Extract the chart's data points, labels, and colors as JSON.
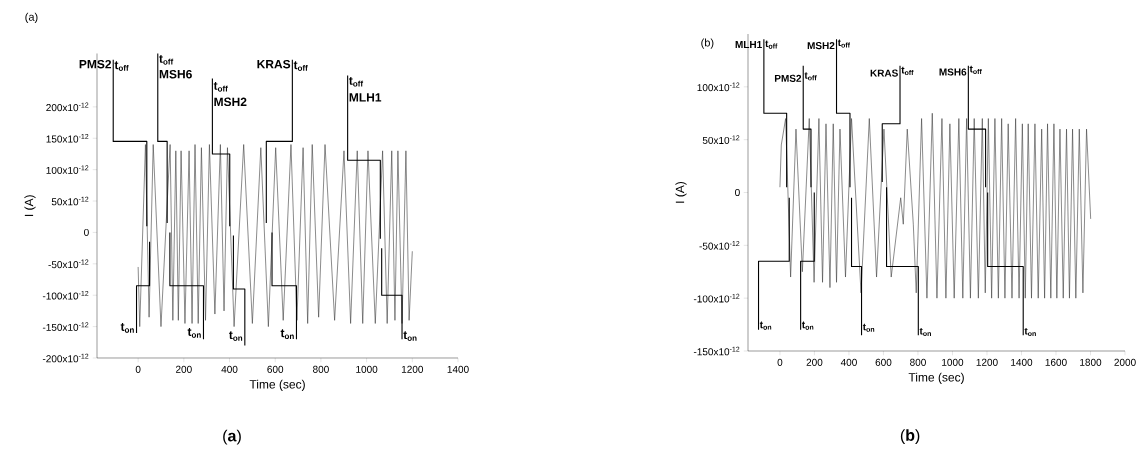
{
  "chart_data": [
    {
      "type": "line",
      "title": "(a)",
      "xlabel": "Time (sec)",
      "ylabel": "I (A)",
      "xlim": [
        -180,
        1400
      ],
      "ylim": [
        -2e-10,
        2.85e-10
      ],
      "xticks": [
        0,
        200,
        400,
        600,
        800,
        1000,
        1200,
        1400
      ],
      "yticks": [
        {
          "value": -2e-10,
          "label": "-200x10$^{-12}$"
        },
        {
          "value": -1.5e-10,
          "label": "-150x10$^{-12}$"
        },
        {
          "value": -1e-10,
          "label": "-100x10$^{-12}$"
        },
        {
          "value": -5e-11,
          "label": "-50x10$^{-12}$"
        },
        0,
        {
          "value": 5e-11,
          "label": "50x10$^{-12}$"
        },
        {
          "value": 1e-10,
          "label": "100x10$^{-12}$"
        },
        {
          "value": 1.5e-10,
          "label": "150x10$^{-12}$"
        },
        {
          "value": 2e-10,
          "label": "200x10$^{-12}$"
        }
      ],
      "series": [
        {
          "color": "#3c3c3c",
          "x": [
            0,
            7,
            32,
            48,
            66,
            100,
            140,
            152,
            165,
            176,
            188,
            205,
            223,
            236,
            249,
            263,
            277,
            295,
            312,
            336,
            360,
            376,
            391,
            420,
            462,
            500,
            537,
            570,
            602,
            635,
            669,
            695,
            722,
            742,
            762,
            790,
            818,
            860,
            901,
            930,
            959,
            983,
            1006,
            1038,
            1070,
            1090,
            1110,
            1124,
            1137,
            1155,
            1172,
            1186,
            1200
          ],
          "values": [
            -5.5e-11,
            -1.5e-10,
            1.4e-10,
            -1.35e-10,
            1.4e-10,
            -1.5e-10,
            1.4e-10,
            -1.4e-10,
            1.3e-10,
            -1.4e-10,
            1.3e-10,
            -1.45e-10,
            1.3e-10,
            -1.45e-10,
            1.4e-10,
            -1.45e-10,
            1.35e-10,
            -1.4e-10,
            1.4e-10,
            -1.3e-10,
            1.4e-10,
            -1.25e-10,
            1.35e-10,
            -1.5e-10,
            1.4e-10,
            -1.45e-10,
            1.35e-10,
            -1.5e-10,
            1.35e-10,
            -1.4e-10,
            1.4e-10,
            -1.4e-10,
            1.35e-10,
            -1.45e-10,
            1.4e-10,
            -1.35e-10,
            1.4e-10,
            -1.4e-10,
            1.3e-10,
            -1.45e-10,
            1.3e-10,
            -1.45e-10,
            1.3e-10,
            -1.45e-10,
            1.3e-10,
            -1.45e-10,
            1.3e-10,
            -1.4e-10,
            1.3e-10,
            -1.45e-10,
            1.3e-10,
            -1.4e-10,
            -3e-11
          ]
        },
        {
          "color": "#000000",
          "x": [
            -109,
            -109,
            38,
            38
          ],
          "values": [
            2.75e-10,
            1.45e-10,
            1.45e-10,
            1e-11
          ]
        },
        {
          "color": "#000000",
          "x": [
            -7,
            -7,
            50,
            50
          ],
          "values": [
            -1.6e-10,
            -8.5e-11,
            -8.5e-11,
            -1.5e-11
          ]
        },
        {
          "color": "#000000",
          "x": [
            86,
            86,
            127,
            127
          ],
          "values": [
            2.85e-10,
            1.45e-10,
            1.45e-10,
            1.5e-11
          ]
        },
        {
          "color": "#000000",
          "x": [
            286,
            286,
            139,
            139
          ],
          "values": [
            -1.7e-10,
            -8.5e-11,
            -8.5e-11,
            0
          ]
        },
        {
          "color": "#000000",
          "x": [
            325,
            325,
            401,
            401
          ],
          "values": [
            2.45e-10,
            1.25e-10,
            1.25e-10,
            1e-11
          ]
        },
        {
          "color": "#000000",
          "x": [
            467,
            467,
            417,
            417
          ],
          "values": [
            -1.8e-10,
            -9e-11,
            -9e-11,
            -5e-12
          ]
        },
        {
          "color": "#000000",
          "x": [
            675,
            675,
            561,
            561
          ],
          "values": [
            2.75e-10,
            1.45e-10,
            1.45e-10,
            1.5e-11
          ]
        },
        {
          "color": "#000000",
          "x": [
            693,
            693,
            586,
            586
          ],
          "values": [
            -1.7e-10,
            -8.5e-11,
            -8.5e-11,
            0
          ]
        },
        {
          "color": "#000000",
          "x": [
            917,
            917,
            1060,
            1060
          ],
          "values": [
            2.5e-10,
            1.15e-10,
            1.15e-10,
            -1e-11
          ]
        },
        {
          "color": "#000000",
          "x": [
            1155,
            1155,
            1066,
            1066
          ],
          "values": [
            -1.7e-10,
            -1e-10,
            -1e-10,
            -2.5e-11
          ]
        }
      ],
      "annotations": [
        {
          "text": "PMS2",
          "x": -109,
          "y": 2.68e-10
        },
        {
          "text": "t$_{off}$",
          "x": -109,
          "y": 2.65e-10
        },
        {
          "text": "t$_{off}$",
          "x": 86,
          "y": 2.75e-10
        },
        {
          "text": "MSH6",
          "x": 86,
          "y": 2.52e-10
        },
        {
          "text": "t$_{off}$",
          "x": 325,
          "y": 2.32e-10
        },
        {
          "text": "MSH2",
          "x": 325,
          "y": 2.08e-10
        },
        {
          "text": "KRAS",
          "x": 675,
          "y": 2.68e-10
        },
        {
          "text": "t$_{off}$",
          "x": 675,
          "y": 2.65e-10
        },
        {
          "text": "t$_{off}$",
          "x": 917,
          "y": 2.4e-10
        },
        {
          "text": "MLH1",
          "x": 917,
          "y": 2.15e-10
        },
        {
          "text": "t$_{on}$",
          "x": -7,
          "y": -1.52e-10
        },
        {
          "text": "t$_{on}$",
          "x": 286,
          "y": -1.6e-10
        },
        {
          "text": "t$_{on}$",
          "x": 467,
          "y": -1.65e-10
        },
        {
          "text": "t$_{on}$",
          "x": 693,
          "y": -1.62e-10
        },
        {
          "text": "t$_{on}$",
          "x": 1155,
          "y": -1.65e-10
        },
        "(**a**)"
      ]
    },
    {
      "type": "line",
      "title": "(b)",
      "xlabel": "Time (sec)",
      "ylabel": "I (A)",
      "xlim": [
        -185,
        2000
      ],
      "ylim": [
        -1.5e-10,
        1.5e-10
      ],
      "xticks": [
        0,
        200,
        400,
        600,
        800,
        1000,
        1200,
        1400,
        1600,
        1800,
        2000
      ],
      "yticks": [
        {
          "value": -1.5e-10,
          "label": "-150x10$^{-12}$"
        },
        {
          "value": -1e-10,
          "label": "-100x10$^{-12}$"
        },
        {
          "value": -5e-11,
          "label": "-50x10$^{-12}$"
        },
        0,
        {
          "value": 5e-11,
          "label": "50x10$^{-12}$"
        },
        {
          "value": 1e-10,
          "label": "100x10$^{-12}$"
        }
      ],
      "series": [
        {
          "color": "#3c3c3c",
          "x": [
            0,
            8,
            33,
            62,
            93,
            130,
            170,
            198,
            226,
            247,
            267,
            290,
            309,
            328,
            348,
            380,
            415,
            470,
            518,
            560,
            603,
            645,
            700,
            715,
            738,
            773,
            790,
            821,
            852,
            883,
            910,
            939,
            962,
            985,
            1010,
            1037,
            1060,
            1082,
            1104,
            1126,
            1150,
            1173,
            1190,
            1208,
            1227,
            1246,
            1266,
            1285,
            1304,
            1323,
            1345,
            1366,
            1386,
            1405,
            1422,
            1439,
            1458,
            1478,
            1497,
            1517,
            1534,
            1551,
            1570,
            1588,
            1605,
            1623,
            1642,
            1661,
            1678,
            1696,
            1715,
            1735,
            1756,
            1777,
            1801
          ],
          "values": [
            5e-12,
            4.5e-11,
            7e-11,
            -8e-11,
            6e-11,
            -7.5e-11,
            7e-11,
            -8.5e-11,
            7e-11,
            -8.5e-11,
            6.5e-11,
            -9e-11,
            6.5e-11,
            -8.5e-11,
            6e-11,
            -8e-11,
            7e-11,
            -9.5e-11,
            7e-11,
            -8e-11,
            6e-11,
            -8e-11,
            -5e-12,
            -3e-11,
            6e-11,
            -3e-11,
            -9.5e-11,
            7e-11,
            -1e-10,
            7.5e-11,
            -1e-10,
            7e-11,
            -1e-10,
            6.5e-11,
            -1e-10,
            7e-11,
            -1e-10,
            7e-11,
            -1e-10,
            7e-11,
            -1e-10,
            7e-11,
            -9.5e-11,
            7e-11,
            -1e-10,
            7e-11,
            -1e-10,
            7e-11,
            -1e-10,
            6.5e-11,
            -1e-10,
            7e-11,
            -1e-10,
            6.5e-11,
            -1e-10,
            6.5e-11,
            -1e-10,
            6.5e-11,
            -1e-10,
            6e-11,
            -1e-10,
            6.5e-11,
            -1e-10,
            6.5e-11,
            -1e-10,
            6e-11,
            -1e-10,
            6e-11,
            -1e-10,
            6e-11,
            -1e-10,
            6e-11,
            -9.5e-11,
            6e-11,
            -2.5e-11
          ]
        },
        {
          "color": "#000000",
          "x": [
            -93,
            -93,
            39,
            39
          ],
          "values": [
            1.45e-10,
            7.5e-11,
            7.5e-11,
            5e-12
          ]
        },
        {
          "color": "#000000",
          "x": [
            -124,
            -124,
            54,
            54
          ],
          "values": [
            -1.3e-10,
            -6.5e-11,
            -6.5e-11,
            -5e-12
          ]
        },
        {
          "color": "#000000",
          "x": [
            135,
            135,
            180,
            180
          ],
          "values": [
            1.2e-10,
            6e-11,
            6e-11,
            5e-12
          ]
        },
        {
          "color": "#000000",
          "x": [
            120,
            120,
            199,
            199
          ],
          "values": [
            -1.3e-10,
            -6.5e-11,
            -6.5e-11,
            0
          ]
        },
        {
          "color": "#000000",
          "x": [
            328,
            328,
            406,
            406
          ],
          "values": [
            1.45e-10,
            7.5e-11,
            7.5e-11,
            5e-12
          ]
        },
        {
          "color": "#000000",
          "x": [
            473,
            473,
            415,
            415
          ],
          "values": [
            -1.35e-10,
            -7e-11,
            -7e-11,
            -5e-12
          ]
        },
        {
          "color": "#000000",
          "x": [
            696,
            696,
            593,
            593
          ],
          "values": [
            1.2e-10,
            6.5e-11,
            6.5e-11,
            1e-11
          ]
        },
        {
          "color": "#000000",
          "x": [
            802,
            802,
            618,
            618
          ],
          "values": [
            -1.35e-10,
            -7e-11,
            -7e-11,
            5e-12
          ]
        },
        {
          "color": "#000000",
          "x": [
            1092,
            1092,
            1192,
            1192
          ],
          "values": [
            1.2e-10,
            6e-11,
            6e-11,
            5e-12
          ]
        },
        {
          "color": "#000000",
          "x": [
            1410,
            1410,
            1204,
            1204
          ],
          "values": [
            -1.35e-10,
            -7e-11,
            -7e-11,
            0
          ]
        }
      ],
      "annotations": [
        {
          "text": "MLH1",
          "x": -93,
          "y": 1.4e-10
        },
        {
          "text": "t$_{off}$",
          "x": -93,
          "y": 1.4e-10
        },
        {
          "text": "PMS2",
          "x": 135,
          "y": 1.08e-10
        },
        {
          "text": "t$_{off}$",
          "x": 135,
          "y": 1.1e-10
        },
        {
          "text": "MSH2",
          "x": 328,
          "y": 1.39e-10
        },
        {
          "text": "t$_{off}$",
          "x": 328,
          "y": 1.41e-10
        },
        {
          "text": "KRAS",
          "x": 696,
          "y": 1.13e-10
        },
        {
          "text": "t$_{off}$",
          "x": 696,
          "y": 1.15e-10
        },
        {
          "text": "MSH6",
          "x": 1092,
          "y": 1.14e-10
        },
        {
          "text": "t$_{off}$",
          "x": 1092,
          "y": 1.16e-10
        },
        {
          "text": "t$_{on}$",
          "x": -124,
          "y": -1.26e-10
        },
        {
          "text": "t$_{on}$",
          "x": 120,
          "y": -1.26e-10
        },
        {
          "text": "t$_{on}$",
          "x": 473,
          "y": -1.28e-10
        },
        {
          "text": "t$_{on}$",
          "x": 802,
          "y": -1.32e-10
        },
        {
          "text": "t$_{on}$",
          "x": 1410,
          "y": -1.32e-10
        },
        "(**b**)"
      ]
    }
  ]
}
